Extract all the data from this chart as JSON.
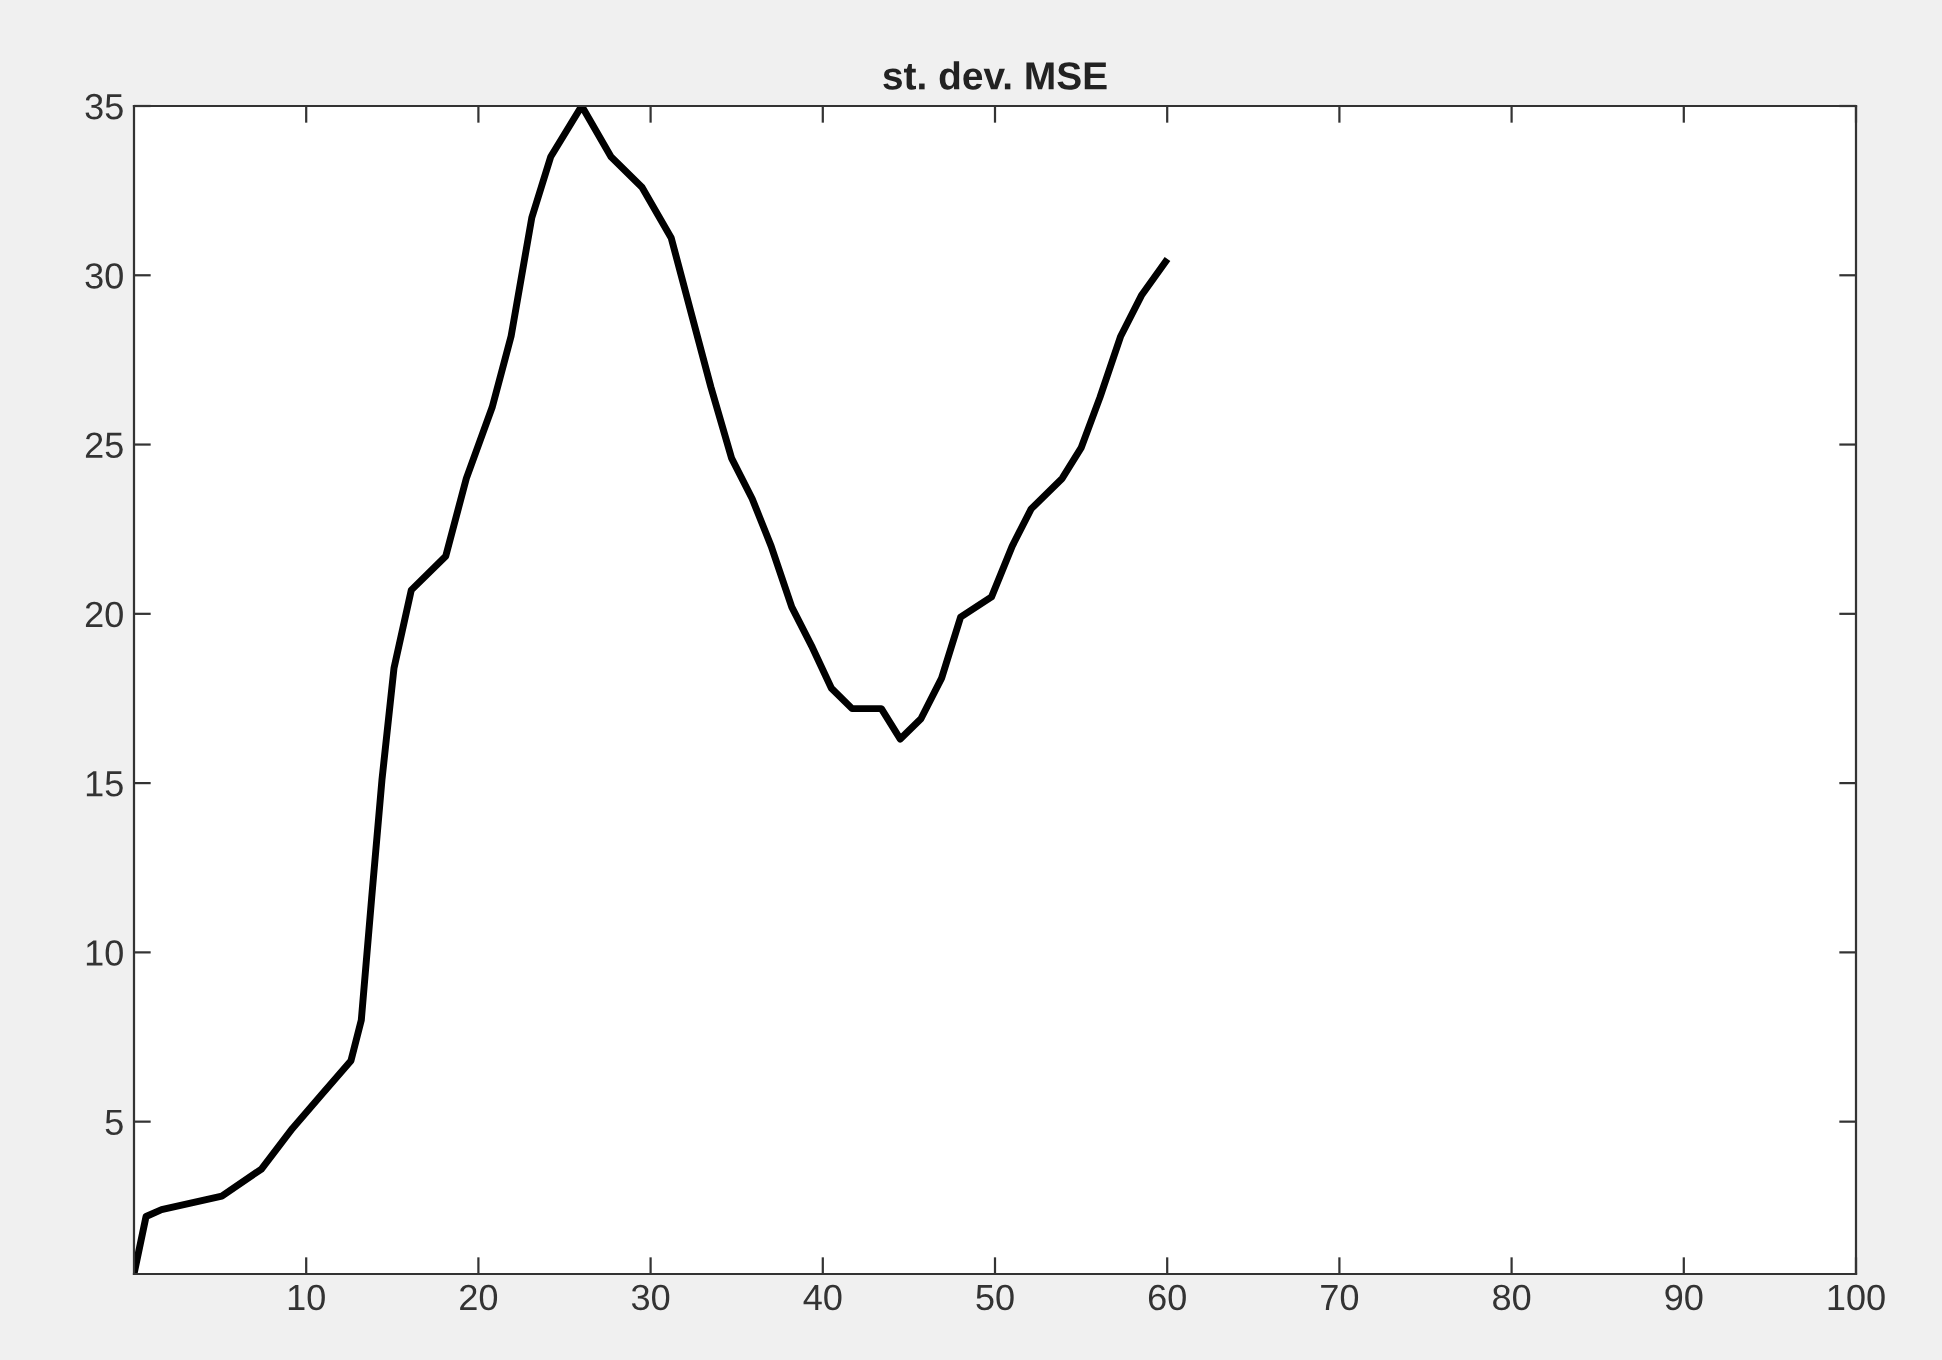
{
  "chart_data": {
    "type": "line",
    "title": "st. dev. MSE",
    "x": [
      0,
      0.7,
      1.6,
      5.1,
      7.4,
      9.2,
      10.9,
      12.6,
      13.2,
      13.8,
      14.4,
      15.1,
      16.1,
      18.1,
      19.3,
      20.8,
      21.9,
      23.1,
      24.2,
      26.0,
      27.7,
      29.5,
      31.2,
      32.4,
      33.5,
      34.7,
      35.9,
      37.0,
      38.2,
      39.4,
      40.5,
      41.7,
      43.4,
      44.5,
      45.7,
      46.9,
      48.0,
      49.8,
      51.0,
      52.1,
      53.9,
      55.0,
      56.1,
      57.3,
      58.5,
      59.9
    ],
    "series": [
      {
        "color": "#000000",
        "values": [
          0.5,
          2.2,
          2.4,
          2.8,
          3.6,
          4.8,
          5.8,
          6.8,
          8.0,
          11.6,
          15.1,
          18.4,
          20.7,
          21.7,
          24.0,
          26.1,
          28.2,
          31.7,
          33.5,
          35.0,
          33.5,
          32.6,
          31.1,
          28.8,
          26.7,
          24.6,
          23.4,
          22.0,
          20.2,
          19.0,
          17.8,
          17.2,
          17.2,
          16.3,
          16.9,
          18.1,
          19.9,
          20.5,
          22.0,
          23.1,
          24.0,
          24.9,
          26.4,
          28.2,
          29.4,
          30.4
        ]
      }
    ],
    "xlim": [
      0,
      100
    ],
    "xticks": [
      10,
      20,
      30,
      40,
      50,
      60,
      70,
      80,
      90,
      100
    ],
    "ylim": [
      0.5,
      35
    ],
    "yticks": [
      5,
      10,
      15,
      20,
      25,
      30,
      35
    ],
    "grid": false,
    "marker": "none",
    "line_style": "solid"
  }
}
